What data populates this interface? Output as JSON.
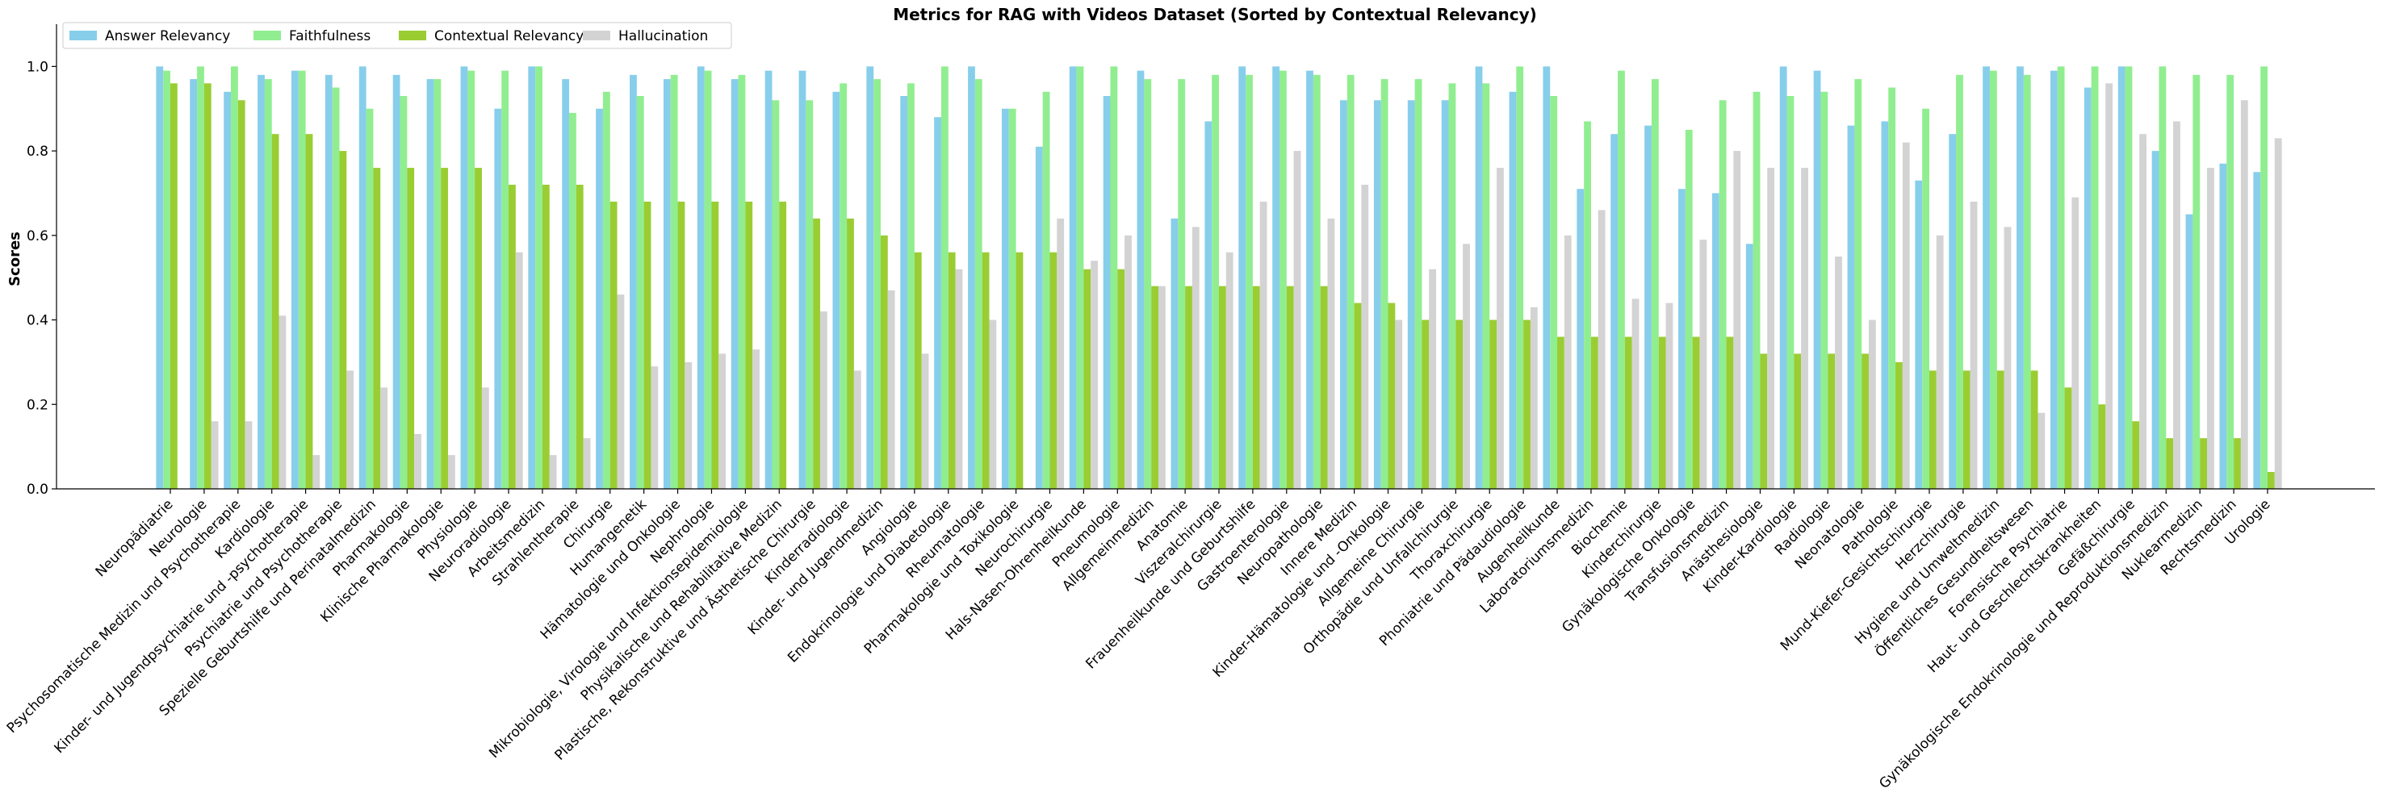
{
  "chart_data": {
    "type": "bar",
    "title": "Metrics for RAG with Videos Dataset (Sorted by Contextual Relevancy)",
    "xlabel": "",
    "ylabel": "Scores",
    "ylim": [
      0,
      1.1
    ],
    "yticks": [
      "0.0",
      "0.2",
      "0.4",
      "0.6",
      "0.8",
      "1.0"
    ],
    "ytick_values": [
      0,
      0.2,
      0.4,
      0.6,
      0.8,
      1.0
    ],
    "legend_position": "top-left",
    "grid": false,
    "categories": [
      "Neuropädiatrie",
      "Neurologie",
      "Psychosomatische Medizin und Psychotherapie",
      "Kardiologie",
      "Kinder- und Jugendpsychiatrie und -psychotherapie",
      "Psychiatrie und Psychotherapie",
      "Spezielle Geburtshilfe und Perinatalmedizin",
      "Pharmakologie",
      "Klinische Pharmakologie",
      "Physiologie",
      "Neuroradiologie",
      "Arbeitsmedizin",
      "Strahlentherapie",
      "Chirurgie",
      "Humangenetik",
      "Hämatologie und Onkologie",
      "Nephrologie",
      "Mikrobiologie, Virologie und Infektionsepidemiologie",
      "Physikalische und Rehabilitative Medizin",
      "Plastische, Rekonstruktive und Ästhetische Chirurgie",
      "Kinderradiologie",
      "Kinder- und Jugendmedizin",
      "Angiologie",
      "Endokrinologie und Diabetologie",
      "Rheumatologie",
      "Pharmakologie und Toxikologie",
      "Neurochirurgie",
      "Hals-Nasen-Ohrenheilkunde",
      "Pneumologie",
      "Allgemeinmedizin",
      "Anatomie",
      "Viszeralchirurgie",
      "Frauenheilkunde und Geburtshilfe",
      "Gastroenterologie",
      "Neuropathologie",
      "Innere Medizin",
      "Kinder-Hämatologie und -Onkologie",
      "Allgemeine Chirurgie",
      "Orthopädie und Unfallchirurgie",
      "Thoraxchirurgie",
      "Phoniatrie und Pädaudiologie",
      "Augenheilkunde",
      "Laboratoriumsmedizin",
      "Biochemie",
      "Kinderchirurgie",
      "Gynäkologische Onkologie",
      "Transfusionsmedizin",
      "Anästhesiologie",
      "Kinder-Kardiologie",
      "Radiologie",
      "Neonatologie",
      "Pathologie",
      "Mund-Kiefer-Gesichtschirurgie",
      "Herzchirurgie",
      "Hygiene und Umweltmedizin",
      "Öffentliches Gesundheitswesen",
      "Forensische Psychiatrie",
      "Haut- und Geschlechtskrankheiten",
      "Gefäßchirurgie",
      "Gynäkologische Endokrinologie und Reproduktionsmedizin",
      "Nuklearmedizin",
      "Rechtsmedizin",
      "Urologie"
    ],
    "series": [
      {
        "name": "Answer Relevancy",
        "color": "#87CEEB",
        "values": [
          1.0,
          0.97,
          0.94,
          0.98,
          0.99,
          0.98,
          1.0,
          0.98,
          0.97,
          1.0,
          0.9,
          1.0,
          0.97,
          0.9,
          0.98,
          0.97,
          1.0,
          0.97,
          0.99,
          0.99,
          0.94,
          1.0,
          0.93,
          0.88,
          1.0,
          0.9,
          0.81,
          1.0,
          0.93,
          0.99,
          0.64,
          0.87,
          1.0,
          1.0,
          0.99,
          0.92,
          0.92,
          0.92,
          0.92,
          1.0,
          0.94,
          1.0,
          0.71,
          0.84,
          0.86,
          0.71,
          0.7,
          0.58,
          1.0,
          0.99,
          0.86,
          0.87,
          0.73,
          0.84,
          1.0,
          1.0,
          0.99,
          0.95,
          1.0,
          0.8,
          0.65,
          0.77,
          0.75
        ]
      },
      {
        "name": "Faithfulness",
        "color": "#90EE90",
        "values": [
          0.99,
          1.0,
          1.0,
          0.97,
          0.99,
          0.95,
          0.9,
          0.93,
          0.97,
          0.99,
          0.99,
          1.0,
          0.89,
          0.94,
          0.93,
          0.98,
          0.99,
          0.98,
          0.92,
          0.92,
          0.96,
          0.97,
          0.96,
          1.0,
          0.97,
          0.9,
          0.94,
          1.0,
          1.0,
          0.97,
          0.97,
          0.98,
          0.98,
          0.99,
          0.98,
          0.98,
          0.97,
          0.97,
          0.96,
          0.96,
          1.0,
          0.93,
          0.87,
          0.99,
          0.97,
          0.85,
          0.92,
          0.94,
          0.93,
          0.94,
          0.97,
          0.95,
          0.9,
          0.98,
          0.99,
          0.98,
          1.0,
          1.0,
          1.0,
          1.0,
          0.98,
          0.98,
          1.0
        ]
      },
      {
        "name": "Contextual Relevancy",
        "color": "#9ACD32",
        "values": [
          0.96,
          0.96,
          0.92,
          0.84,
          0.84,
          0.8,
          0.76,
          0.76,
          0.76,
          0.76,
          0.72,
          0.72,
          0.72,
          0.68,
          0.68,
          0.68,
          0.68,
          0.68,
          0.68,
          0.64,
          0.64,
          0.6,
          0.56,
          0.56,
          0.56,
          0.56,
          0.56,
          0.52,
          0.52,
          0.48,
          0.48,
          0.48,
          0.48,
          0.48,
          0.48,
          0.44,
          0.44,
          0.4,
          0.4,
          0.4,
          0.4,
          0.36,
          0.36,
          0.36,
          0.36,
          0.36,
          0.36,
          0.32,
          0.32,
          0.32,
          0.32,
          0.3,
          0.28,
          0.28,
          0.28,
          0.28,
          0.24,
          0.2,
          0.16,
          0.12,
          0.12,
          0.12,
          0.04
        ]
      },
      {
        "name": "Hallucination",
        "color": "#D3D3D3",
        "values": [
          0.0,
          0.16,
          0.16,
          0.41,
          0.08,
          0.28,
          0.24,
          0.13,
          0.08,
          0.24,
          0.56,
          0.08,
          0.12,
          0.46,
          0.29,
          0.3,
          0.32,
          0.33,
          0.0,
          0.42,
          0.28,
          0.47,
          0.32,
          0.52,
          0.4,
          0.0,
          0.64,
          0.54,
          0.6,
          0.48,
          0.62,
          0.56,
          0.68,
          0.8,
          0.64,
          0.72,
          0.4,
          0.52,
          0.58,
          0.76,
          0.43,
          0.6,
          0.66,
          0.45,
          0.44,
          0.59,
          0.8,
          0.76,
          0.76,
          0.55,
          0.4,
          0.82,
          0.6,
          0.68,
          0.62,
          0.18,
          0.69,
          0.96,
          0.84,
          0.87,
          0.76,
          0.92,
          0.83
        ]
      }
    ]
  }
}
